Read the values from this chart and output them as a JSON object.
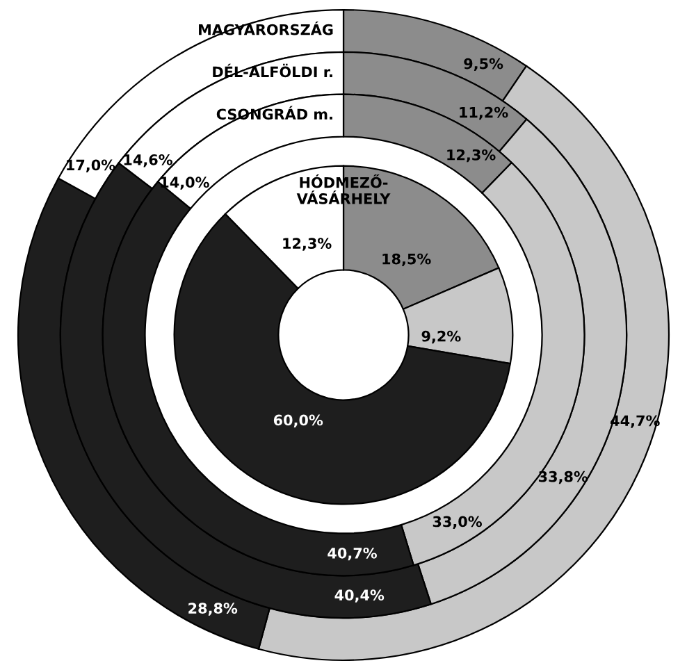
{
  "chart_data": {
    "type": "donut",
    "categories": [
      null,
      null,
      null,
      null
    ],
    "colors": [
      "#8c8c8c",
      "#c8c8c8",
      "#1e1e1e",
      "#ffffff"
    ],
    "series": [
      {
        "name": "MAGYARORSZÁG",
        "values": [
          9.5,
          44.7,
          28.8,
          17.0
        ],
        "value_labels": [
          "9,5%",
          "44,7%",
          "28,8%",
          "17,0%"
        ]
      },
      {
        "name": "DÉL-ALFÖLDI r.",
        "values": [
          11.2,
          33.8,
          40.4,
          14.6
        ],
        "value_labels": [
          "11,2%",
          "33,8%",
          "40,4%",
          "14,6%"
        ]
      },
      {
        "name": "CSONGRÁD m.",
        "values": [
          12.3,
          33.0,
          40.7,
          14.0
        ],
        "value_labels": [
          "12,3%",
          "33,0%",
          "40,7%",
          "14,0%"
        ]
      },
      {
        "name": "HÓDMEZŐ-\nVÁSÁRHELY",
        "values": [
          18.5,
          9.2,
          60.0,
          12.3
        ],
        "value_labels": [
          "18,5%",
          "9,2%",
          "60,0%",
          "12,3%"
        ]
      }
    ],
    "legend": false
  }
}
